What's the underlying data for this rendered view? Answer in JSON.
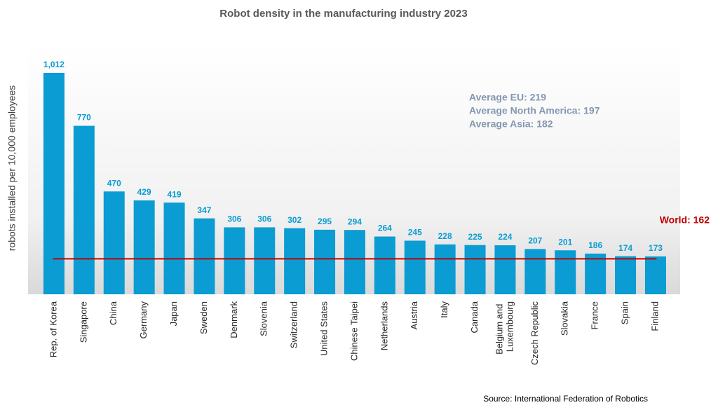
{
  "chart_data": {
    "type": "bar",
    "title": "Robot density in the manufacturing industry 2023",
    "ylabel": "robots installed per 10,000 employees",
    "categories": [
      "Rep. of Korea",
      "Singapore",
      "China",
      "Germany",
      "Japan",
      "Sweden",
      "Denmark",
      "Slovenia",
      "Switzerland",
      "United States",
      "Chinese Taipei",
      "Netherlands",
      "Austria",
      "Italy",
      "Canada",
      "Belgium and Luxembourg",
      "Czech Republic",
      "Slovakia",
      "France",
      "Spain",
      "Finland"
    ],
    "values": [
      1012,
      770,
      470,
      429,
      419,
      347,
      306,
      306,
      302,
      295,
      294,
      264,
      245,
      228,
      225,
      224,
      207,
      201,
      186,
      174,
      173
    ],
    "value_labels": [
      "1,012",
      "770",
      "470",
      "429",
      "419",
      "347",
      "306",
      "306",
      "302",
      "295",
      "294",
      "264",
      "245",
      "228",
      "225",
      "224",
      "207",
      "201",
      "186",
      "174",
      "173"
    ],
    "color": "#0a9cd2",
    "ylim": [
      0,
      1100
    ],
    "reference_line": {
      "label": "World: 162",
      "value": 162,
      "color": "#c00000"
    },
    "annotations": [
      "Average EU: 219",
      "Average North America: 197",
      "Average Asia: 182"
    ],
    "source": "Source: International Federation of Robotics"
  }
}
